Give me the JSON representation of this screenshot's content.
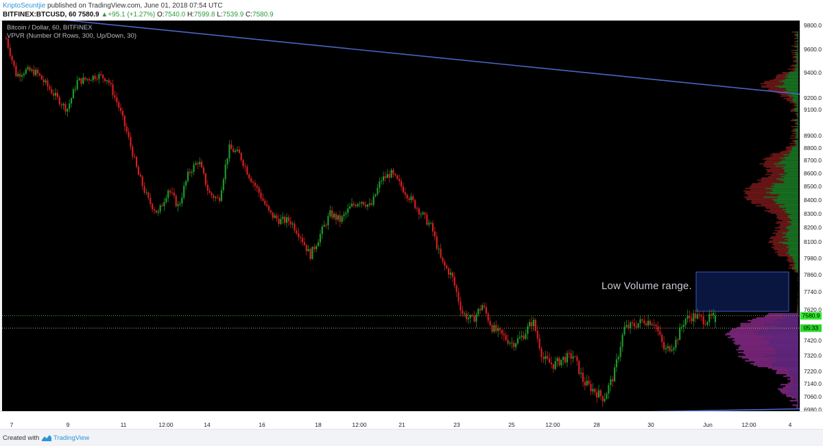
{
  "header": {
    "author": "KriptoSeuntjie",
    "published_text": " published on TradingView.com, June 01, 2018 07:54 UTC",
    "symbol": "BITFINEX:BTCUSD, 60",
    "last": "7580.9",
    "change_arrow": "▲",
    "change": "+95.1 (+1.27%)",
    "o_label": "O:",
    "o_value": "7540.0",
    "h_label": "H:",
    "h_value": "7599.8",
    "l_label": "L:",
    "l_value": "7539.9",
    "c_label": "C:",
    "c_value": "7580.9"
  },
  "legend": {
    "title": "Bitcoin / Dollar, 60, BITFINEX",
    "indicator": "VPVR (Number Of Rows, 300, Up/Down, 30)"
  },
  "annotation": {
    "text": "Low Volume range."
  },
  "price_axis": {
    "ticks": [
      "9800.0",
      "9600.0",
      "9400.0",
      "9200.0",
      "9100.0",
      "8900.0",
      "8800.0",
      "8700.0",
      "8600.0",
      "8500.0",
      "8400.0",
      "8300.0",
      "8200.0",
      "8100.0",
      "7980.0",
      "7860.0",
      "7740.0",
      "7620.0",
      "7420.0",
      "7320.0",
      "7220.0",
      "7140.0",
      "7060.0",
      "6980.0"
    ],
    "last_price": "7580.9",
    "countdown": "05:33"
  },
  "time_axis": {
    "ticks": [
      "7",
      "9",
      "11",
      "12:00",
      "14",
      "16",
      "18",
      "12:00",
      "21",
      "23",
      "25",
      "12:00",
      "28",
      "30",
      "Jun",
      "12:00",
      "4"
    ]
  },
  "footer": {
    "created_with": "Created with",
    "brand": "TradingView"
  },
  "colors": {
    "up": "#1f9a2a",
    "down": "#d42020",
    "trendline": "#4a66c8",
    "vp_up": "#1b7a25",
    "vp_down": "#7a1a1a",
    "vp_up_va": "#6a2a8a",
    "vp_down_va": "#8a2a8a",
    "box": "#0b1640",
    "box_border": "#3a5ab8",
    "last_price_tag": "#2ee82e",
    "countdown_tag": "#29d629"
  },
  "chart_data": {
    "type": "candlestick",
    "symbol": "BITFINEX:BTCUSD",
    "interval": "60",
    "last_ohlc": {
      "open": 7540.0,
      "high": 7599.8,
      "low": 7539.9,
      "close": 7580.9
    },
    "y_range": [
      6950,
      9850
    ],
    "trendlines": [
      {
        "name": "upper",
        "from": {
          "x": "start",
          "y": 9880
        },
        "to": {
          "x": "end",
          "y": 9230
        }
      },
      {
        "name": "lower",
        "from": {
          "x": "mid",
          "y": 6940
        },
        "to": {
          "x": "end",
          "y": 6985
        }
      }
    ],
    "low_volume_range": {
      "from": 7610,
      "to": 7880
    },
    "approx_path": [
      9690,
      9380,
      9420,
      9400,
      9300,
      9200,
      9100,
      9330,
      9350,
      9380,
      9350,
      9150,
      8900,
      8600,
      8400,
      8300,
      8480,
      8350,
      8600,
      8700,
      8450,
      8400,
      8800,
      8750,
      8580,
      8450,
      8300,
      8250,
      8250,
      8150,
      8000,
      8150,
      8300,
      8250,
      8350,
      8400,
      8350,
      8550,
      8600,
      8500,
      8400,
      8300,
      8200,
      7950,
      7850,
      7600,
      7550,
      7650,
      7500,
      7450,
      7400,
      7450,
      7550,
      7300,
      7260,
      7300,
      7320,
      7150,
      7100,
      7050,
      7200,
      7500,
      7520,
      7550,
      7540,
      7350,
      7400,
      7560,
      7580,
      7550,
      7580
    ]
  }
}
